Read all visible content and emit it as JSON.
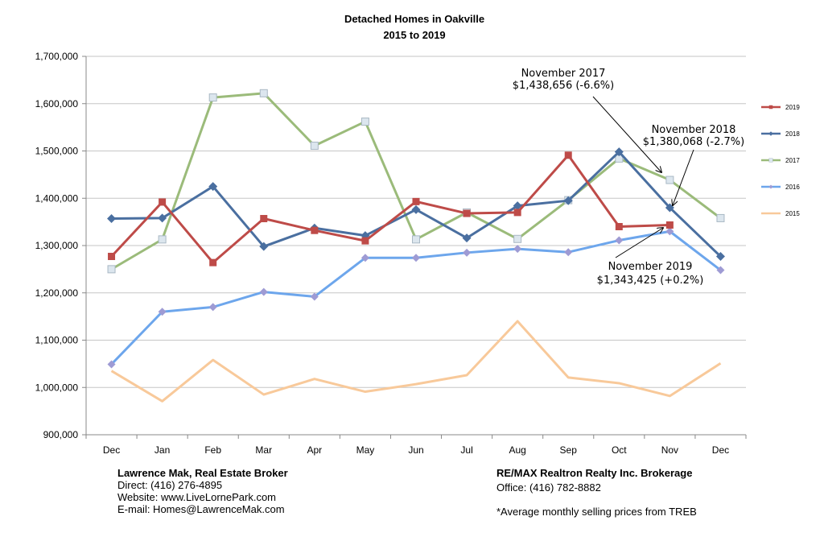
{
  "chart_data": {
    "type": "line",
    "title": "Detached Homes in Oakville",
    "subtitle": "2015 to 2019",
    "categories": [
      "Dec",
      "Jan",
      "Feb",
      "Mar",
      "Apr",
      "May",
      "Jun",
      "Jul",
      "Aug",
      "Sep",
      "Oct",
      "Nov",
      "Dec"
    ],
    "ylim": [
      900000,
      1700000
    ],
    "yticks": [
      {
        "value": 900000,
        "label": "900,000"
      },
      {
        "value": 1000000,
        "label": "1,000,000"
      },
      {
        "value": 1100000,
        "label": "1,100,000"
      },
      {
        "value": 1200000,
        "label": "1,200,000"
      },
      {
        "value": 1300000,
        "label": "1,300,000"
      },
      {
        "value": 1400000,
        "label": "1,400,000"
      },
      {
        "value": 1500000,
        "label": "1,500,000"
      },
      {
        "value": 1600000,
        "label": "1,600,000"
      },
      {
        "value": 1700000,
        "label": "1,700,000"
      }
    ],
    "grid": true,
    "legend_position": "right",
    "series": [
      {
        "name": "2019",
        "color": "#be4b48",
        "marker": "square",
        "values": [
          1277000,
          1392000,
          1264000,
          1357000,
          1332000,
          1310000,
          1393000,
          1368000,
          1370000,
          1491000,
          1340000,
          1343425,
          null
        ]
      },
      {
        "name": "2018",
        "color": "#4a6fa0",
        "marker": "diamond",
        "values": [
          1357000,
          1358000,
          1425000,
          1298000,
          1337000,
          1321000,
          1376000,
          1316000,
          1384000,
          1395000,
          1498000,
          1380068,
          1277000
        ]
      },
      {
        "name": "2017",
        "color": "#9bbb7a",
        "marker": "square-light",
        "values": [
          1250000,
          1313000,
          1613000,
          1622000,
          1511000,
          1562000,
          1313000,
          1370000,
          1314000,
          1396000,
          1484000,
          1438656,
          1358000
        ]
      },
      {
        "name": "2016",
        "color": "#6da6ec",
        "marker": "diamond-light",
        "values": [
          1049000,
          1160000,
          1170000,
          1202000,
          1192000,
          1274000,
          1274000,
          1285000,
          1293000,
          1286000,
          1311000,
          1330000,
          1248000
        ]
      },
      {
        "name": "2015",
        "color": "#f8c99a",
        "marker": "none",
        "values": [
          1035000,
          971000,
          1058000,
          985000,
          1018000,
          991000,
          1007000,
          1026000,
          1140000,
          1021000,
          1009000,
          982000,
          1051000
        ]
      }
    ],
    "annotations": [
      {
        "line1": "November 2017",
        "line2": "$1,438,656 (-6.6%)"
      },
      {
        "line1": "November 2018",
        "line2": "$1,380,068 (-2.7%)"
      },
      {
        "line1": "November 2019",
        "line2": "$1,343,425 (+0.2%)"
      }
    ]
  },
  "footer": {
    "broker_name": "Lawrence Mak, Real Estate Broker",
    "direct": "Direct:  (416) 276-4895",
    "website": "Website:  www.LiveLornePark.com",
    "email": "E-mail:  Homes@LawrenceMak.com",
    "brokerage": "RE/MAX Realtron Realty Inc. Brokerage",
    "office": "Office: (416) 782-8882",
    "note": "*Average monthly selling prices from TREB"
  }
}
